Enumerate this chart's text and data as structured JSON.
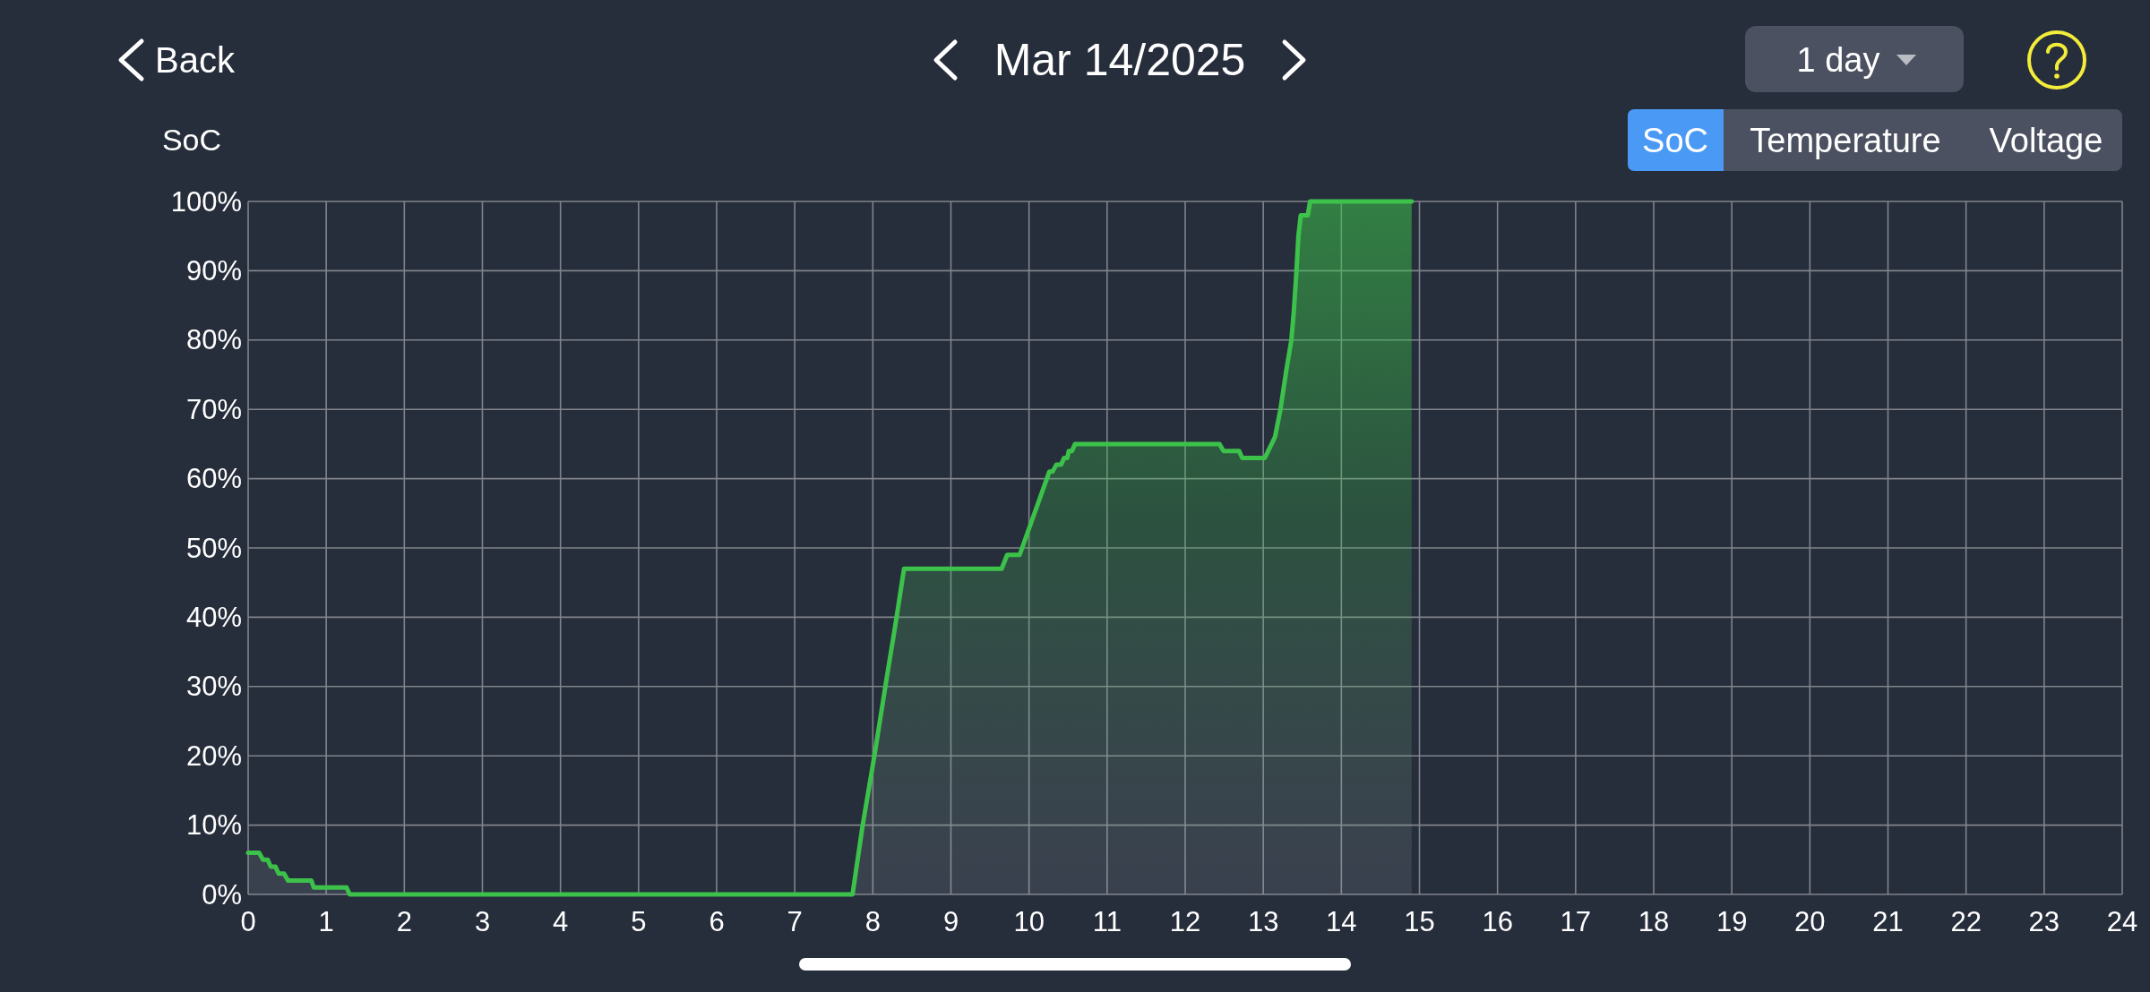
{
  "chart_data": {
    "type": "area",
    "title": "Mar 14/2025",
    "ylabel": "SoC",
    "annotations": [
      "Back",
      "1 day",
      "SoC",
      "Temperature",
      "Voltage"
    ],
    "x": [
      0,
      0.14,
      0.19,
      0.25,
      0.29,
      0.35,
      0.39,
      0.46,
      0.51,
      0.81,
      0.84,
      1.26,
      1.3,
      7.74,
      7.87,
      8.02,
      8.16,
      8.29,
      8.4,
      9.65,
      9.72,
      9.88,
      10.26,
      10.3,
      10.35,
      10.41,
      10.45,
      10.49,
      10.51,
      10.55,
      10.59,
      12.44,
      12.49,
      12.69,
      12.73,
      13.02,
      13.15,
      13.22,
      13.3,
      13.36,
      13.39,
      13.42,
      13.45,
      13.48,
      13.57,
      13.6,
      14.9
    ],
    "series": [
      {
        "color": "#3cc24a",
        "values": [
          6,
          6,
          5,
          5,
          4,
          4,
          3,
          3,
          2,
          2,
          1,
          1,
          0,
          0,
          10,
          20,
          30,
          39,
          47,
          47,
          49,
          49,
          61,
          61,
          62,
          62,
          63,
          63,
          64,
          64,
          65,
          65,
          64,
          64,
          63,
          63,
          66,
          70,
          76,
          80,
          84,
          89,
          95,
          98,
          98,
          100,
          100
        ]
      }
    ],
    "xlim": [
      0,
      24
    ],
    "ylim": [
      0,
      100
    ],
    "xticks": [
      0,
      1,
      2,
      3,
      4,
      5,
      6,
      7,
      8,
      9,
      10,
      11,
      12,
      13,
      14,
      15,
      16,
      17,
      18,
      19,
      20,
      21,
      22,
      23,
      24
    ],
    "yticks": [
      {
        "value": 0,
        "label": "0%"
      },
      {
        "value": 10,
        "label": "10%"
      },
      {
        "value": 20,
        "label": "20%"
      },
      {
        "value": 30,
        "label": "30%"
      },
      {
        "value": 40,
        "label": "40%"
      },
      {
        "value": 50,
        "label": "50%"
      },
      {
        "value": 60,
        "label": "60%"
      },
      {
        "value": 70,
        "label": "70%"
      },
      {
        "value": 80,
        "label": "80%"
      },
      {
        "value": 90,
        "label": "90%"
      },
      {
        "value": 100,
        "label": "100%"
      }
    ],
    "grid": true
  }
}
